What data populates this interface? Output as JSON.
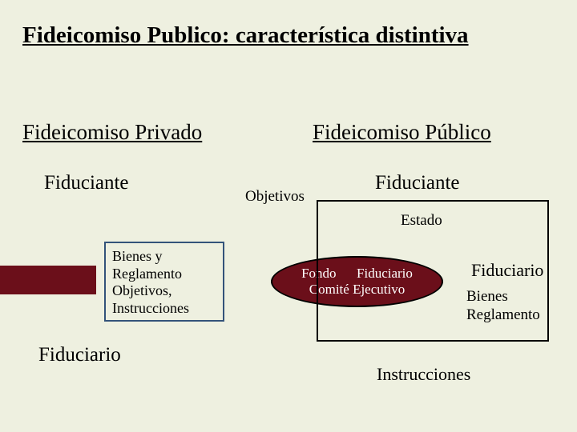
{
  "background_color": "#eef0e0",
  "accent_bar_color": "#6b0f1a",
  "ellipse_bg": "#6b0f1a",
  "ellipse_border": "#000000",
  "box_border": "#33537a",
  "line_color": "#000000",
  "title": "Fideicomiso Publico: característica distintiva",
  "left": {
    "header": "Fideicomiso Privado",
    "sub": "Fiduciante",
    "box_l1": "Bienes y",
    "box_l2": "Reglamento",
    "box_l3": "Objetivos,",
    "box_l4": "Instrucciones",
    "bottom": "Fiduciario"
  },
  "middle": {
    "objetivos": "Objetivos"
  },
  "right": {
    "header": "Fideicomiso Público",
    "sub": "Fiduciante",
    "estado": "Estado",
    "ellipse_row1_a": "Fondo",
    "ellipse_row1_b": "Fiduciario",
    "ellipse_row2": "Comité Ejecutivo",
    "fiduciario": "Fiduciario",
    "bienes": "Bienes",
    "reglamento": "Reglamento",
    "instrucciones": "Instrucciones"
  }
}
